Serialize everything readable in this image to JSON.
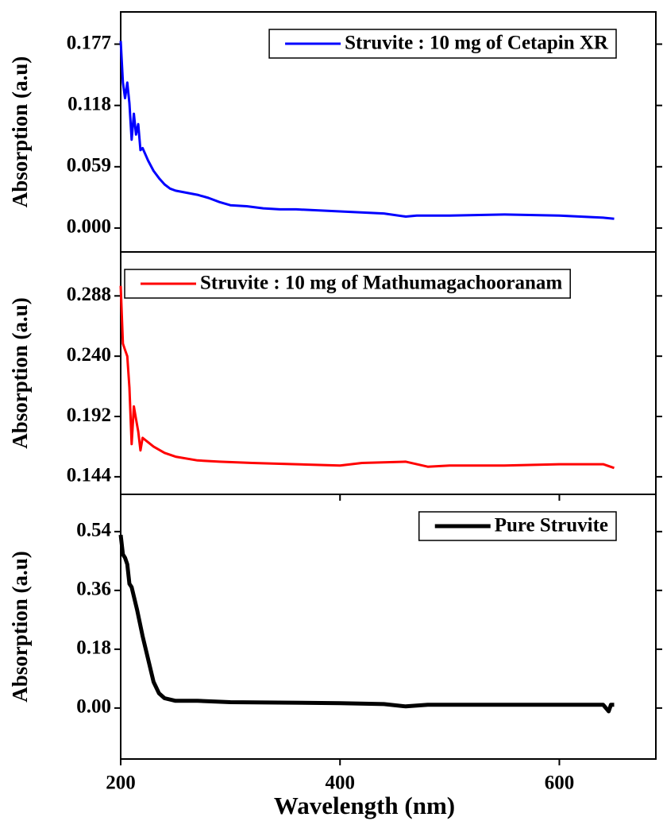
{
  "chart_data": [
    {
      "type": "line",
      "ylabel": "Absorption (a.u)",
      "xlim": [
        200,
        688
      ],
      "ylim": [
        -0.023,
        0.208
      ],
      "yticks": [
        0.177,
        0.118,
        0.059,
        {
          "value": 0,
          "label": "0.000"
        }
      ],
      "legend": "upper right",
      "series": [
        {
          "name": "Struvite : 10 mg of Cetapin XR",
          "color": "#0000ff",
          "linewidth": 3,
          "x": [
            200,
            202,
            204,
            206,
            208,
            210,
            212,
            214,
            216,
            218,
            220,
            225,
            230,
            235,
            240,
            245,
            250,
            260,
            270,
            280,
            290,
            300,
            315,
            330,
            345,
            360,
            400,
            440,
            460,
            470,
            500,
            550,
            600,
            640,
            650
          ],
          "values": [
            0.18,
            0.14,
            0.125,
            0.14,
            0.12,
            0.085,
            0.11,
            0.09,
            0.1,
            0.075,
            0.077,
            0.065,
            0.055,
            0.048,
            0.042,
            0.038,
            0.036,
            0.034,
            0.032,
            0.029,
            0.025,
            0.022,
            0.021,
            0.019,
            0.018,
            0.018,
            0.016,
            0.014,
            0.011,
            0.012,
            0.012,
            0.013,
            0.012,
            0.01,
            0.009
          ]
        }
      ]
    },
    {
      "type": "line",
      "ylabel": "Absorption (a.u)",
      "xlim": [
        200,
        688
      ],
      "ylim": [
        0.13,
        0.323
      ],
      "yticks": [
        0.288,
        {
          "value": 0.24,
          "label": "0.240"
        },
        0.192,
        0.144
      ],
      "legend": "upper left",
      "series": [
        {
          "name": "Struvite : 10 mg of Mathumagachooranam",
          "color": "#ff0000",
          "linewidth": 3,
          "x": [
            200,
            202,
            204,
            206,
            208,
            210,
            212,
            214,
            216,
            218,
            220,
            230,
            240,
            250,
            270,
            290,
            320,
            360,
            400,
            420,
            460,
            480,
            500,
            550,
            600,
            640,
            650
          ],
          "values": [
            0.296,
            0.25,
            0.245,
            0.24,
            0.215,
            0.17,
            0.2,
            0.19,
            0.18,
            0.165,
            0.175,
            0.168,
            0.163,
            0.16,
            0.157,
            0.156,
            0.155,
            0.154,
            0.153,
            0.155,
            0.156,
            0.152,
            0.153,
            0.153,
            0.154,
            0.154,
            0.151
          ]
        }
      ]
    },
    {
      "type": "line",
      "ylabel": "Absorption (a.u)",
      "xlabel": "Wavelength (nm)",
      "xlim": [
        200,
        688
      ],
      "xticks": [
        200,
        400,
        600
      ],
      "ylim": [
        -0.156,
        0.654
      ],
      "yticks": [
        0.54,
        0.36,
        0.18,
        {
          "value": 0,
          "label": "0.00"
        }
      ],
      "legend": "upper right",
      "series": [
        {
          "name": "Pure Struvite",
          "color": "#000000",
          "linewidth": 5,
          "x": [
            200,
            202,
            204,
            206,
            208,
            210,
            215,
            220,
            225,
            230,
            235,
            240,
            250,
            270,
            300,
            400,
            440,
            460,
            480,
            600,
            640,
            645,
            647,
            650
          ],
          "values": [
            0.53,
            0.47,
            0.46,
            0.44,
            0.38,
            0.37,
            0.3,
            0.22,
            0.15,
            0.08,
            0.045,
            0.03,
            0.022,
            0.022,
            0.018,
            0.015,
            0.012,
            0.005,
            0.01,
            0.01,
            0.01,
            -0.01,
            0.01,
            0.01
          ]
        }
      ]
    }
  ]
}
